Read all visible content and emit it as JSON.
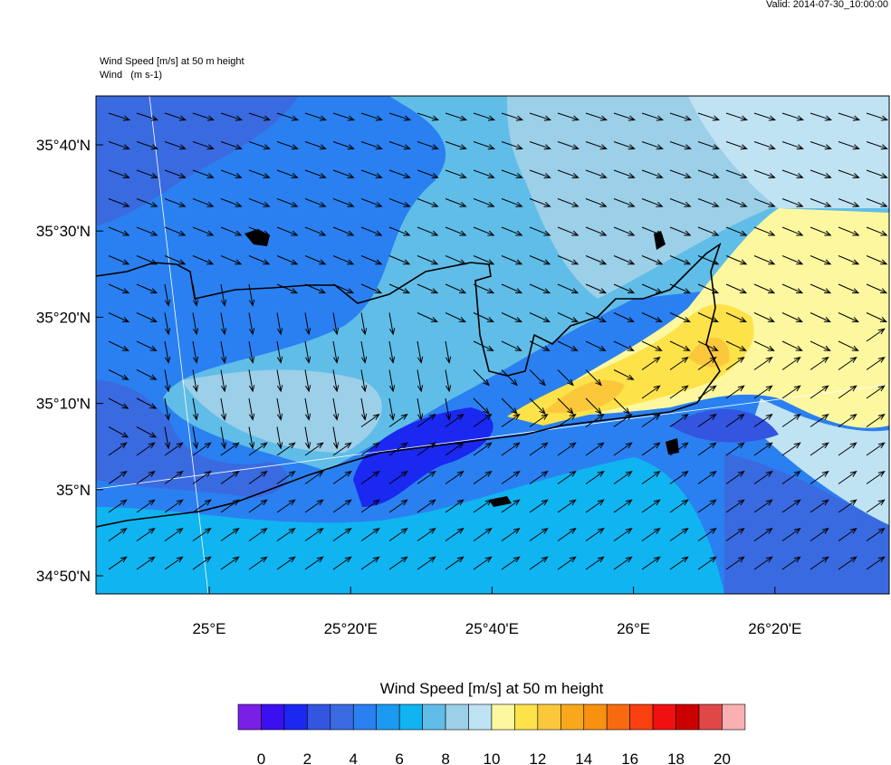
{
  "header": {
    "valid": "Valid: 2014-07-30_10:00:00",
    "title_lines": [
      "Wind Speed [m/s] at 50 m height",
      "Wind   (m s-1)"
    ]
  },
  "map": {
    "lat_labels": [
      "35°40'N",
      "35°30'N",
      "35°20'N",
      "35°10'N",
      "35°N",
      "34°50'N"
    ],
    "lon_labels": [
      "25°E",
      "25°20'E",
      "25°40'E",
      "26°E",
      "26°20'E"
    ]
  },
  "colorbar": {
    "title": "Wind Speed [m/s] at 50 m height",
    "colors": [
      "#7a1fe6",
      "#3a10f0",
      "#1a28f0",
      "#3355e0",
      "#3a6ae0",
      "#2a80f0",
      "#1a9af0",
      "#10b4f0",
      "#60bde8",
      "#9ccfe8",
      "#c0e3f4",
      "#fdf8a0",
      "#fde24a",
      "#fbc83c",
      "#f8a81a",
      "#f89010",
      "#f86a10",
      "#f84010",
      "#f01010",
      "#cc0000",
      "#e04848",
      "#f8b0b0"
    ],
    "ticks": [
      0,
      2,
      4,
      6,
      8,
      10,
      12,
      14,
      16,
      18,
      20
    ]
  }
}
